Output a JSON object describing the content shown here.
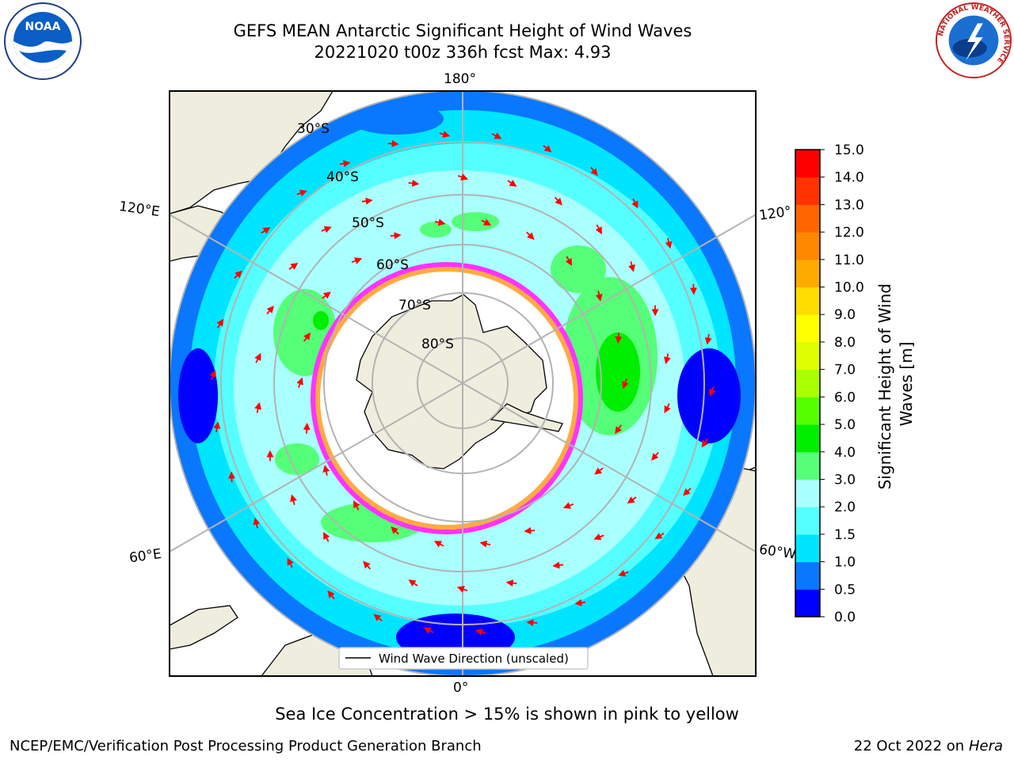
{
  "title": {
    "line1": "GEFS MEAN Antarctic Significant Height of Wind Waves",
    "line2": "20221020 t00z 336h fcst   Max: 4.93"
  },
  "map": {
    "projection": "south-polar-stereographic",
    "longitude_labels": [
      "180°",
      "120°E",
      "120°",
      "60°E",
      "60°W",
      "0°"
    ],
    "latitude_labels": [
      "30°S",
      "40°S",
      "50°S",
      "60°S",
      "70°S",
      "80°S"
    ],
    "legend_label": "Wind Wave Direction (unscaled)",
    "arrow_color": "#ff0000",
    "land_color": "#efedde",
    "ice_colors": [
      "#ff33ff",
      "#ffaa44"
    ]
  },
  "colorbar": {
    "label_line1": "Significant Height of Wind",
    "label_line2": "Waves [m]",
    "ticks": [
      "0.0",
      "0.5",
      "1.0",
      "1.5",
      "2.0",
      "3.0",
      "4.0",
      "5.0",
      "6.0",
      "7.0",
      "8.0",
      "9.0",
      "10.0",
      "11.0",
      "12.0",
      "13.0",
      "14.0",
      "15.0"
    ],
    "colors": [
      "#0000ff",
      "#0a77ff",
      "#00e5ff",
      "#55ffff",
      "#aaffff",
      "#55ff77",
      "#00ee00",
      "#55ff00",
      "#aaff00",
      "#ddff00",
      "#ffff00",
      "#ffdd00",
      "#ffaa00",
      "#ff8800",
      "#ff6600",
      "#ff3300",
      "#ff0000"
    ]
  },
  "subtitle": "Sea Ice Concentration > 15% is shown in pink to yellow",
  "footer": {
    "left": "NCEP/EMC/Verification Post Processing Product Generation Branch",
    "right_prefix": "22 Oct 2022 on ",
    "right_machine": "Hera"
  },
  "logos": {
    "left": "NOAA",
    "right_ring": "NATIONAL WEATHER SERVICE"
  }
}
